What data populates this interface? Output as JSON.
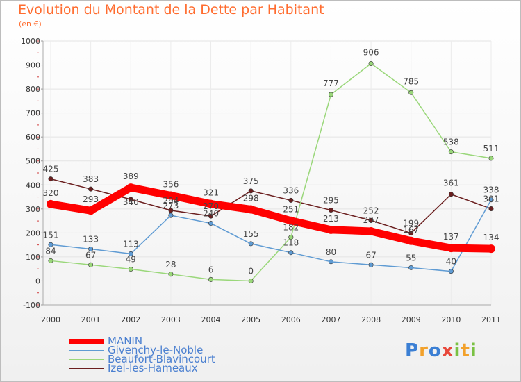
{
  "header": {
    "title": "Evolution du Montant de la Dette par Habitant",
    "unit": "(en €)"
  },
  "logo": {
    "text": "Proxiti",
    "letters": [
      {
        "ch": "P",
        "color": "#3b7fd4"
      },
      {
        "ch": "r",
        "color": "#f2a12b"
      },
      {
        "ch": "o",
        "color": "#3b7fd4"
      },
      {
        "ch": "x",
        "color": "#e8483b"
      },
      {
        "ch": "i",
        "color": "#7ac143"
      },
      {
        "ch": "t",
        "color": "#f2a12b"
      },
      {
        "ch": "i",
        "color": "#7ac143"
      }
    ]
  },
  "chart_data": {
    "type": "line",
    "categories": [
      "2000",
      "2001",
      "2002",
      "2003",
      "2004",
      "2005",
      "2006",
      "2007",
      "2008",
      "2009",
      "2010",
      "2011"
    ],
    "ylim": [
      -100,
      1000
    ],
    "yticks": [
      -100,
      0,
      100,
      200,
      300,
      400,
      500,
      600,
      700,
      800,
      900,
      1000
    ],
    "grid": true,
    "legend_position": "bottom",
    "series": [
      {
        "name": "Izel-les-Hameaux",
        "color": "#6b1f1f",
        "values": [
          425,
          383,
          340,
          294,
          270,
          375,
          336,
          295,
          252,
          199,
          361,
          301
        ]
      },
      {
        "name": "Beaufort-Blavincourt",
        "color": "#9ad77a",
        "values": [
          84,
          67,
          49,
          28,
          6,
          0,
          182,
          777,
          906,
          785,
          538,
          511
        ]
      },
      {
        "name": "Givenchy-le-Noble",
        "color": "#5f9bd3",
        "values": [
          151,
          133,
          113,
          273,
          240,
          155,
          118,
          80,
          67,
          55,
          40,
          338
        ]
      },
      {
        "name": "MANIN",
        "color": "#ff0000",
        "values": [
          320,
          293,
          389,
          356,
          321,
          298,
          251,
          213,
          207,
          167,
          137,
          134
        ]
      }
    ],
    "data_labels": {
      "Izel-les-Hameaux": [
        "425",
        "383",
        "340",
        "294",
        "270",
        "375",
        "336",
        "295",
        "252",
        "199",
        "361",
        "301"
      ],
      "Beaufort-Blavincourt": [
        "84",
        "67",
        "49",
        "28",
        "6",
        "0",
        "182",
        "777",
        "906",
        "785",
        "538",
        "511"
      ],
      "Givenchy-le-Noble": [
        "151",
        "133",
        "113",
        "273",
        "240",
        "155",
        "118",
        "80",
        "67",
        "55",
        "40",
        "338"
      ],
      "MANIN": [
        "320",
        "293",
        "389",
        "356",
        "321",
        "298",
        "251",
        "213",
        "207",
        "167",
        "137",
        "134"
      ]
    },
    "legend_order": [
      "MANIN",
      "Givenchy-le-Noble",
      "Beaufort-Blavincourt",
      "Izel-les-Hameaux"
    ]
  }
}
